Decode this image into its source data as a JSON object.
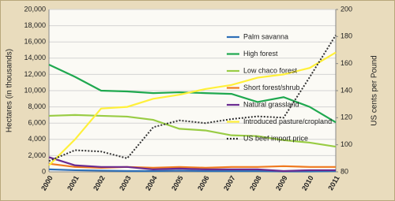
{
  "chart_data": {
    "type": "line",
    "categories": [
      "2000",
      "2001",
      "2002",
      "2003",
      "2004",
      "2005",
      "2006",
      "2007",
      "2008",
      "2009",
      "2010",
      "2011"
    ],
    "ylabel": "Hectares (in thousands)",
    "y2label": "US cents per Pound",
    "ylim": [
      0,
      20000
    ],
    "yticks": [
      0,
      {
        "value": 2000,
        "label": "2,000"
      },
      {
        "value": 4000,
        "label": "4,000"
      },
      {
        "value": 6000,
        "label": "6,000"
      },
      {
        "value": 8000,
        "label": "8,000"
      },
      {
        "value": 10000,
        "label": "10,000"
      },
      {
        "value": 12000,
        "label": "12,000"
      },
      {
        "value": 14000,
        "label": "14,000"
      },
      {
        "value": 16000,
        "label": "16,000"
      },
      {
        "value": 18000,
        "label": "18,000"
      },
      {
        "value": 20000,
        "label": "20,000"
      }
    ],
    "y2lim": [
      80,
      200
    ],
    "y2ticks": [
      80,
      100,
      120,
      140,
      160,
      180,
      200
    ],
    "grid": true,
    "legend": "right",
    "series": [
      {
        "name": "Palm savanna",
        "color": "#2e6fb7",
        "values": [
          300,
          200,
          150,
          100,
          100,
          150,
          100,
          100,
          100,
          50,
          50,
          100
        ]
      },
      {
        "name": "High forest",
        "color": "#1fa84f",
        "values": [
          13200,
          11700,
          10000,
          9900,
          9700,
          9800,
          9700,
          9600,
          8600,
          9200,
          8000,
          6100
        ]
      },
      {
        "name": "Low chaco forest",
        "color": "#99cc44",
        "values": [
          6900,
          7000,
          6900,
          6800,
          6400,
          5300,
          5100,
          4500,
          4400,
          3900,
          3600,
          3100
        ]
      },
      {
        "name": "Short forest/shrub",
        "color": "#f07a1f",
        "values": [
          1000,
          600,
          500,
          600,
          500,
          600,
          500,
          600,
          600,
          700,
          600,
          600
        ]
      },
      {
        "name": "Natural grassland",
        "color": "#6a2a90",
        "values": [
          1800,
          800,
          600,
          600,
          300,
          400,
          300,
          300,
          300,
          100,
          200,
          200
        ]
      },
      {
        "name": "Introduced pasture/cropland",
        "color": "#fff03a",
        "values": [
          800,
          4000,
          7800,
          8000,
          9000,
          9500,
          10200,
          10700,
          11600,
          12000,
          12800,
          14700
        ]
      },
      {
        "name": "US beef import price",
        "color": "#333333",
        "dash": true,
        "axis": "y2",
        "values": [
          88,
          96,
          95,
          90,
          113,
          118,
          116,
          119,
          121,
          120,
          150,
          181
        ]
      }
    ]
  }
}
